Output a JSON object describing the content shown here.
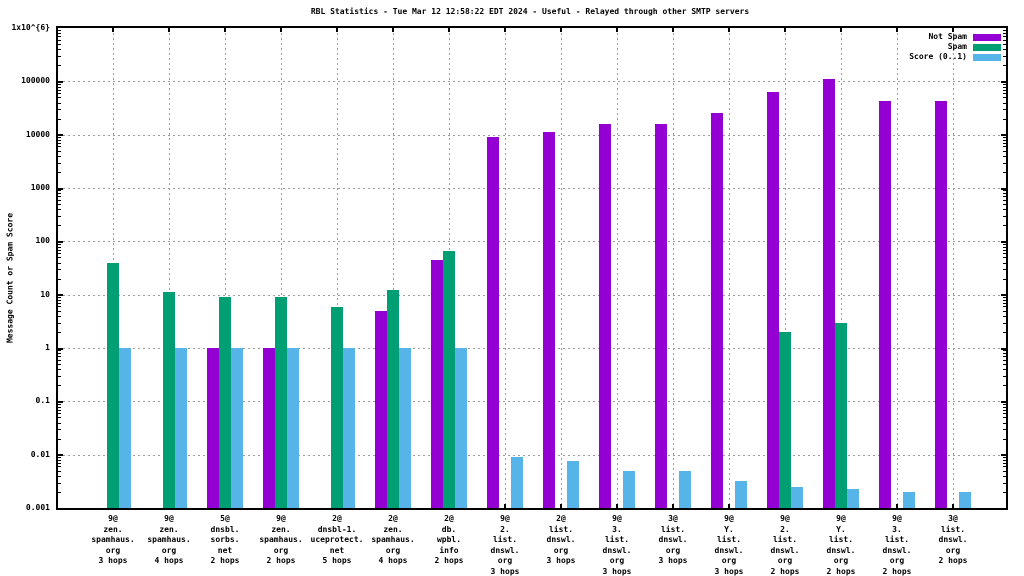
{
  "title": "RBL Statistics - Tue Mar 12 12:58:22 EDT 2024 - Useful - Relayed through other SMTP servers",
  "axes": {
    "y_label": "Message Count or Spam Score",
    "y_ticks": [
      {
        "label": "1x10^{6}",
        "value": 1000000
      },
      {
        "label": "100000",
        "value": 100000
      },
      {
        "label": "10000",
        "value": 10000
      },
      {
        "label": "1000",
        "value": 1000
      },
      {
        "label": "100",
        "value": 100
      },
      {
        "label": "10",
        "value": 10
      },
      {
        "label": "1",
        "value": 1
      },
      {
        "label": "0.1",
        "value": 0.1
      },
      {
        "label": "0.01",
        "value": 0.01
      },
      {
        "label": "0.001",
        "value": 0.001
      }
    ]
  },
  "legend": [
    {
      "label": "Not Spam",
      "color": "#9400d3"
    },
    {
      "label": "Spam",
      "color": "#009e73"
    },
    {
      "label": "Score (0..1)",
      "color": "#56b4e9"
    }
  ],
  "chart_data": {
    "type": "bar",
    "y_scale": "log",
    "ylim": [
      0.001,
      1000000
    ],
    "grid": true,
    "legend_position": "top-right",
    "title": "RBL Statistics - Tue Mar 12 12:58:22 EDT 2024 - Useful - Relayed through other SMTP servers",
    "xlabel": "",
    "ylabel": "Message Count or Spam Score",
    "categories": [
      "9@ zen.spamhaus.org 3 hops",
      "9@ zen.spamhaus.org 4 hops",
      "5@ dnsbl.sorbs.net 2 hops",
      "9@ zen.spamhaus.org 2 hops",
      "2@ dnsbl-1.uceprotect.net 5 hops",
      "2@ zen.spamhaus.org 4 hops",
      "2@ db.wpbl.info 2 hops",
      "9@ 2.list.dnswl.org 3 hops",
      "2@ list.dnswl.org 3 hops",
      "9@ 3.list.dnswl.org 3 hops",
      "3@ list.dnswl.org 3 hops",
      "9@ Y.list.dnswl.org 3 hops",
      "9@ 2.list.dnswl.org 2 hops",
      "9@ Y.list.dnswl.org 2 hops",
      "9@ 3.list.dnswl.org 2 hops",
      "3@ list.dnswl.org 2 hops"
    ],
    "category_label_lines": [
      [
        "9@",
        "zen.",
        "spamhaus.",
        "org",
        "3 hops"
      ],
      [
        "9@",
        "zen.",
        "spamhaus.",
        "org",
        "4 hops"
      ],
      [
        "5@",
        "dnsbl.",
        "sorbs.",
        "net",
        "2 hops"
      ],
      [
        "9@",
        "zen.",
        "spamhaus.",
        "org",
        "2 hops"
      ],
      [
        "2@",
        "dnsbl-1.",
        "uceprotect.",
        "net",
        "5 hops"
      ],
      [
        "2@",
        "zen.",
        "spamhaus.",
        "org",
        "4 hops"
      ],
      [
        "2@",
        "db.",
        "wpbl.",
        "info",
        "2 hops"
      ],
      [
        "9@",
        "2.",
        "list.",
        "dnswl.",
        "org",
        "3 hops"
      ],
      [
        "2@",
        "list.",
        "dnswl.",
        "org",
        "3 hops"
      ],
      [
        "9@",
        "3.",
        "list.",
        "dnswl.",
        "org",
        "3 hops"
      ],
      [
        "3@",
        "list.",
        "dnswl.",
        "org",
        "3 hops"
      ],
      [
        "9@",
        "Y.",
        "list.",
        "dnswl.",
        "org",
        "3 hops"
      ],
      [
        "9@",
        "2.",
        "list.",
        "dnswl.",
        "org",
        "2 hops"
      ],
      [
        "9@",
        "Y.",
        "list.",
        "dnswl.",
        "org",
        "2 hops"
      ],
      [
        "9@",
        "3.",
        "list.",
        "dnswl.",
        "org",
        "2 hops"
      ],
      [
        "3@",
        "list.",
        "dnswl.",
        "org",
        "2 hops"
      ]
    ],
    "series": [
      {
        "name": "Not Spam",
        "color": "#9400d3",
        "values": [
          null,
          null,
          1,
          1,
          null,
          5,
          45,
          9000,
          11000,
          16000,
          16000,
          26000,
          63000,
          110000,
          42000,
          42000
        ]
      },
      {
        "name": "Spam",
        "color": "#009e73",
        "values": [
          40,
          11,
          9,
          9,
          6,
          12,
          65,
          null,
          null,
          null,
          null,
          null,
          2,
          3,
          null,
          null
        ]
      },
      {
        "name": "Score (0..1)",
        "color": "#56b4e9",
        "values": [
          1,
          1,
          1,
          1,
          1,
          1,
          1,
          0.009,
          0.0075,
          0.005,
          0.005,
          0.0032,
          0.0025,
          0.0023,
          0.002,
          0.002
        ]
      }
    ]
  }
}
